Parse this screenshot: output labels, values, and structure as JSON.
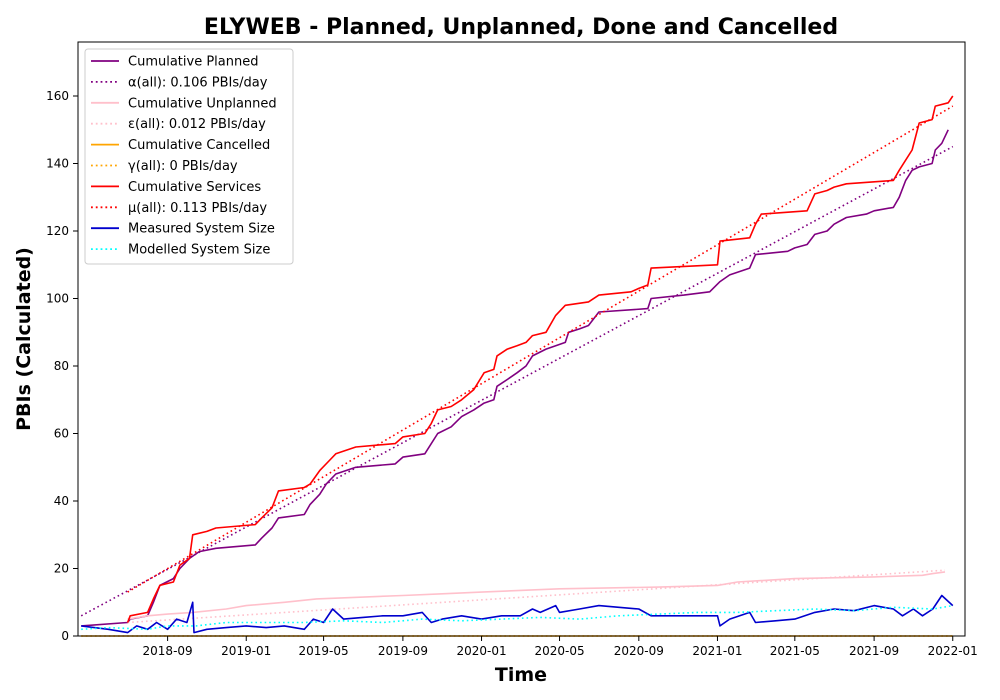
{
  "chart_data": {
    "type": "line",
    "title": "ELYWEB - Planned, Unplanned, Done  and Cancelled",
    "xlabel": "Time",
    "ylabel": "PBIs (Calculated)",
    "xlim": [
      "2018-04-15",
      "2022-01-20"
    ],
    "ylim": [
      0,
      176
    ],
    "x_ticks": [
      "2018-09",
      "2019-01",
      "2019-05",
      "2019-09",
      "2020-01",
      "2020-05",
      "2020-09",
      "2021-01",
      "2021-05",
      "2021-09",
      "2022-01"
    ],
    "y_ticks": [
      0,
      20,
      40,
      60,
      80,
      100,
      120,
      140,
      160
    ],
    "grid": false,
    "legend_position": "top-left",
    "series": [
      {
        "name": "Cumulative Planned",
        "color": "#800080",
        "style": "solid",
        "points": [
          [
            "2018-04-20",
            3
          ],
          [
            "2018-07-01",
            4
          ],
          [
            "2018-07-05",
            5
          ],
          [
            "2018-08-01",
            6
          ],
          [
            "2018-08-10",
            10
          ],
          [
            "2018-08-20",
            15
          ],
          [
            "2018-09-10",
            17
          ],
          [
            "2018-09-20",
            20
          ],
          [
            "2018-10-05",
            23
          ],
          [
            "2018-10-20",
            25
          ],
          [
            "2018-11-15",
            26
          ],
          [
            "2019-01-15",
            27
          ],
          [
            "2019-01-25",
            29
          ],
          [
            "2019-02-10",
            32
          ],
          [
            "2019-02-20",
            35
          ],
          [
            "2019-04-01",
            36
          ],
          [
            "2019-04-10",
            39
          ],
          [
            "2019-04-25",
            42
          ],
          [
            "2019-05-05",
            45
          ],
          [
            "2019-05-20",
            48
          ],
          [
            "2019-06-20",
            50
          ],
          [
            "2019-08-20",
            51
          ],
          [
            "2019-09-01",
            53
          ],
          [
            "2019-10-05",
            54
          ],
          [
            "2019-10-15",
            57
          ],
          [
            "2019-10-25",
            60
          ],
          [
            "2019-11-15",
            62
          ],
          [
            "2019-12-01",
            65
          ],
          [
            "2019-12-20",
            67
          ],
          [
            "2020-01-05",
            69
          ],
          [
            "2020-01-20",
            70
          ],
          [
            "2020-01-25",
            74
          ],
          [
            "2020-02-10",
            76
          ],
          [
            "2020-02-25",
            78
          ],
          [
            "2020-03-10",
            80
          ],
          [
            "2020-03-20",
            83
          ],
          [
            "2020-04-10",
            85
          ],
          [
            "2020-04-25",
            86
          ],
          [
            "2020-05-10",
            87
          ],
          [
            "2020-05-15",
            90
          ],
          [
            "2020-06-01",
            91
          ],
          [
            "2020-06-15",
            92
          ],
          [
            "2020-07-01",
            96
          ],
          [
            "2020-09-15",
            97
          ],
          [
            "2020-09-20",
            100
          ],
          [
            "2020-11-10",
            101
          ],
          [
            "2020-12-20",
            102
          ],
          [
            "2021-01-05",
            105
          ],
          [
            "2021-01-20",
            107
          ],
          [
            "2021-02-20",
            109
          ],
          [
            "2021-03-01",
            113
          ],
          [
            "2021-04-20",
            114
          ],
          [
            "2021-05-01",
            115
          ],
          [
            "2021-05-20",
            116
          ],
          [
            "2021-06-01",
            119
          ],
          [
            "2021-06-20",
            120
          ],
          [
            "2021-07-01",
            122
          ],
          [
            "2021-07-20",
            124
          ],
          [
            "2021-08-20",
            125
          ],
          [
            "2021-09-01",
            126
          ],
          [
            "2021-10-01",
            127
          ],
          [
            "2021-10-10",
            130
          ],
          [
            "2021-10-20",
            135
          ],
          [
            "2021-10-30",
            138
          ],
          [
            "2021-11-10",
            139
          ],
          [
            "2021-11-30",
            140
          ],
          [
            "2021-12-05",
            144
          ],
          [
            "2021-12-15",
            146
          ],
          [
            "2021-12-25",
            150
          ]
        ]
      },
      {
        "name": "α(all): 0.106 PBIs/day",
        "color": "#800080",
        "style": "dotted",
        "points": [
          [
            "2018-04-20",
            6
          ],
          [
            "2022-01-01",
            145
          ]
        ]
      },
      {
        "name": "Cumulative Unplanned",
        "color": "#ffc0cb",
        "style": "solid",
        "points": [
          [
            "2018-07-01",
            5
          ],
          [
            "2018-08-01",
            6
          ],
          [
            "2018-09-01",
            6.5
          ],
          [
            "2018-10-10",
            7
          ],
          [
            "2018-12-01",
            8
          ],
          [
            "2019-01-01",
            9
          ],
          [
            "2019-03-01",
            10
          ],
          [
            "2019-04-20",
            11
          ],
          [
            "2019-09-01",
            12
          ],
          [
            "2019-11-01",
            12.5
          ],
          [
            "2020-01-01",
            13
          ],
          [
            "2020-03-01",
            13.5
          ],
          [
            "2020-05-01",
            14
          ],
          [
            "2020-10-01",
            14.5
          ],
          [
            "2021-01-01",
            15
          ],
          [
            "2021-02-01",
            16
          ],
          [
            "2021-05-01",
            17
          ],
          [
            "2021-09-01",
            17.5
          ],
          [
            "2021-11-15",
            18
          ],
          [
            "2021-12-01",
            18.5
          ],
          [
            "2021-12-20",
            19
          ]
        ]
      },
      {
        "name": "ε(all): 0.012 PBIs/day",
        "color": "#ffc0cb",
        "style": "dotted",
        "points": [
          [
            "2018-07-01",
            4
          ],
          [
            "2021-12-20",
            19.5
          ]
        ]
      },
      {
        "name": "Cumulative Cancelled",
        "color": "#ffa500",
        "style": "solid",
        "points": [
          [
            "2018-04-20",
            0
          ],
          [
            "2022-01-01",
            0
          ]
        ]
      },
      {
        "name": "γ(all): 0 PBIs/day",
        "color": "#ffa500",
        "style": "dotted",
        "points": [
          [
            "2018-04-20",
            0
          ],
          [
            "2022-01-01",
            0
          ]
        ]
      },
      {
        "name": "Cumulative Services",
        "color": "#ff0000",
        "style": "solid",
        "points": [
          [
            "2018-07-01",
            4
          ],
          [
            "2018-07-05",
            6
          ],
          [
            "2018-08-01",
            7
          ],
          [
            "2018-08-10",
            11
          ],
          [
            "2018-08-20",
            15
          ],
          [
            "2018-09-10",
            16
          ],
          [
            "2018-09-20",
            21
          ],
          [
            "2018-10-05",
            23
          ],
          [
            "2018-10-10",
            30
          ],
          [
            "2018-11-01",
            31
          ],
          [
            "2018-11-15",
            32
          ],
          [
            "2019-01-15",
            33
          ],
          [
            "2019-01-25",
            35
          ],
          [
            "2019-02-10",
            38
          ],
          [
            "2019-02-20",
            43
          ],
          [
            "2019-04-01",
            44
          ],
          [
            "2019-04-10",
            45
          ],
          [
            "2019-04-25",
            49
          ],
          [
            "2019-05-10",
            52
          ],
          [
            "2019-05-20",
            54
          ],
          [
            "2019-06-20",
            56
          ],
          [
            "2019-08-20",
            57
          ],
          [
            "2019-09-01",
            59
          ],
          [
            "2019-10-05",
            60
          ],
          [
            "2019-10-15",
            63
          ],
          [
            "2019-10-25",
            67
          ],
          [
            "2019-11-15",
            68
          ],
          [
            "2019-12-01",
            70
          ],
          [
            "2019-12-20",
            73
          ],
          [
            "2020-01-05",
            78
          ],
          [
            "2020-01-20",
            79
          ],
          [
            "2020-01-25",
            83
          ],
          [
            "2020-02-10",
            85
          ],
          [
            "2020-02-25",
            86
          ],
          [
            "2020-03-10",
            87
          ],
          [
            "2020-03-20",
            89
          ],
          [
            "2020-04-10",
            90
          ],
          [
            "2020-04-25",
            95
          ],
          [
            "2020-05-10",
            98
          ],
          [
            "2020-06-15",
            99
          ],
          [
            "2020-07-01",
            101
          ],
          [
            "2020-08-20",
            102
          ],
          [
            "2020-09-01",
            103
          ],
          [
            "2020-09-15",
            104
          ],
          [
            "2020-09-20",
            109
          ],
          [
            "2021-01-01",
            110
          ],
          [
            "2021-01-05",
            117
          ],
          [
            "2021-02-20",
            118
          ],
          [
            "2021-03-01",
            122
          ],
          [
            "2021-03-10",
            125
          ],
          [
            "2021-05-20",
            126
          ],
          [
            "2021-06-01",
            131
          ],
          [
            "2021-06-20",
            132
          ],
          [
            "2021-07-01",
            133
          ],
          [
            "2021-07-20",
            134
          ],
          [
            "2021-10-01",
            135
          ],
          [
            "2021-10-10",
            138
          ],
          [
            "2021-10-20",
            141
          ],
          [
            "2021-10-30",
            144
          ],
          [
            "2021-11-10",
            152
          ],
          [
            "2021-11-30",
            153
          ],
          [
            "2021-12-05",
            157
          ],
          [
            "2021-12-25",
            158
          ],
          [
            "2022-01-01",
            160
          ]
        ]
      },
      {
        "name": "μ(all): 0.113 PBIs/day",
        "color": "#ff0000",
        "style": "dotted",
        "points": [
          [
            "2018-07-01",
            13
          ],
          [
            "2022-01-01",
            157
          ]
        ]
      },
      {
        "name": "Measured System Size",
        "color": "#0000cd",
        "style": "solid",
        "points": [
          [
            "2018-04-20",
            3
          ],
          [
            "2018-06-01",
            2
          ],
          [
            "2018-07-01",
            1
          ],
          [
            "2018-07-15",
            3
          ],
          [
            "2018-08-01",
            2
          ],
          [
            "2018-08-15",
            4
          ],
          [
            "2018-09-01",
            2
          ],
          [
            "2018-09-15",
            5
          ],
          [
            "2018-10-01",
            4
          ],
          [
            "2018-10-10",
            10
          ],
          [
            "2018-10-12",
            1
          ],
          [
            "2018-11-01",
            2
          ],
          [
            "2018-12-01",
            2.5
          ],
          [
            "2019-01-01",
            3
          ],
          [
            "2019-02-01",
            2.5
          ],
          [
            "2019-03-01",
            3
          ],
          [
            "2019-04-01",
            2
          ],
          [
            "2019-04-15",
            5
          ],
          [
            "2019-05-01",
            4
          ],
          [
            "2019-05-15",
            8
          ],
          [
            "2019-06-01",
            5
          ],
          [
            "2019-07-01",
            5.5
          ],
          [
            "2019-08-01",
            6
          ],
          [
            "2019-09-01",
            6
          ],
          [
            "2019-10-01",
            7
          ],
          [
            "2019-10-15",
            4
          ],
          [
            "2019-11-01",
            5
          ],
          [
            "2019-12-01",
            6
          ],
          [
            "2020-01-01",
            5
          ],
          [
            "2020-02-01",
            6
          ],
          [
            "2020-03-01",
            6
          ],
          [
            "2020-03-20",
            8
          ],
          [
            "2020-04-01",
            7
          ],
          [
            "2020-04-25",
            9
          ],
          [
            "2020-05-01",
            7
          ],
          [
            "2020-06-01",
            8
          ],
          [
            "2020-07-01",
            9
          ],
          [
            "2020-08-01",
            8.5
          ],
          [
            "2020-09-01",
            8
          ],
          [
            "2020-09-20",
            6
          ],
          [
            "2020-10-01",
            6
          ],
          [
            "2020-11-01",
            6
          ],
          [
            "2020-12-01",
            6
          ],
          [
            "2021-01-01",
            6
          ],
          [
            "2021-01-05",
            3
          ],
          [
            "2021-01-20",
            5
          ],
          [
            "2021-02-20",
            7
          ],
          [
            "2021-03-01",
            4
          ],
          [
            "2021-04-01",
            4.5
          ],
          [
            "2021-05-01",
            5
          ],
          [
            "2021-06-01",
            7
          ],
          [
            "2021-07-01",
            8
          ],
          [
            "2021-08-01",
            7.5
          ],
          [
            "2021-09-01",
            9
          ],
          [
            "2021-10-01",
            8
          ],
          [
            "2021-10-15",
            6
          ],
          [
            "2021-11-01",
            8
          ],
          [
            "2021-11-15",
            6
          ],
          [
            "2021-12-01",
            8
          ],
          [
            "2021-12-15",
            12
          ],
          [
            "2022-01-01",
            9
          ]
        ]
      },
      {
        "name": "Modelled System Size",
        "color": "#00ffff",
        "style": "dotted",
        "points": [
          [
            "2018-04-20",
            2
          ],
          [
            "2018-06-01",
            2.5
          ],
          [
            "2018-08-01",
            2
          ],
          [
            "2018-09-01",
            3
          ],
          [
            "2018-10-15",
            3
          ],
          [
            "2018-12-01",
            4
          ],
          [
            "2019-02-01",
            4
          ],
          [
            "2019-04-01",
            4
          ],
          [
            "2019-06-01",
            4.5
          ],
          [
            "2019-08-01",
            4
          ],
          [
            "2019-10-01",
            5
          ],
          [
            "2019-12-01",
            4.5
          ],
          [
            "2020-02-01",
            5
          ],
          [
            "2020-04-01",
            5.5
          ],
          [
            "2020-06-01",
            5
          ],
          [
            "2020-08-01",
            6
          ],
          [
            "2020-10-01",
            6.5
          ],
          [
            "2020-12-01",
            7
          ],
          [
            "2021-02-01",
            7
          ],
          [
            "2021-04-01",
            7.5
          ],
          [
            "2021-06-01",
            8
          ],
          [
            "2021-08-01",
            7.5
          ],
          [
            "2021-10-01",
            8.5
          ],
          [
            "2021-12-01",
            8
          ],
          [
            "2022-01-01",
            9
          ]
        ]
      }
    ]
  }
}
